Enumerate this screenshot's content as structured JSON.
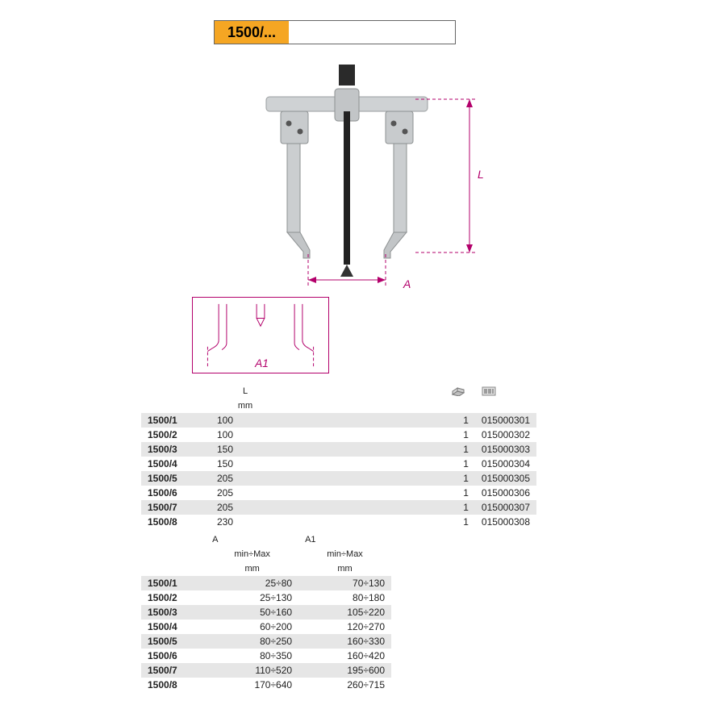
{
  "title": "1500/...",
  "colors": {
    "accent_orange": "#f5a623",
    "dim_magenta": "#b3006b",
    "row_shade": "#e6e6e6",
    "border_gray": "#666666",
    "text": "#222222",
    "background": "#ffffff"
  },
  "dimension_labels": {
    "L": "L",
    "A": "A",
    "A1": "A1"
  },
  "table1": {
    "headers": {
      "L": "L",
      "unit": "mm"
    },
    "columns": [
      "model",
      "L_mm",
      "qty",
      "code"
    ],
    "rows": [
      {
        "model": "1500/1",
        "L_mm": "100",
        "qty": "1",
        "code": "015000301"
      },
      {
        "model": "1500/2",
        "L_mm": "100",
        "qty": "1",
        "code": "015000302"
      },
      {
        "model": "1500/3",
        "L_mm": "150",
        "qty": "1",
        "code": "015000303"
      },
      {
        "model": "1500/4",
        "L_mm": "150",
        "qty": "1",
        "code": "015000304"
      },
      {
        "model": "1500/5",
        "L_mm": "205",
        "qty": "1",
        "code": "015000305"
      },
      {
        "model": "1500/6",
        "L_mm": "205",
        "qty": "1",
        "code": "015000306"
      },
      {
        "model": "1500/7",
        "L_mm": "205",
        "qty": "1",
        "code": "015000307"
      },
      {
        "model": "1500/8",
        "L_mm": "230",
        "qty": "1",
        "code": "015000308"
      }
    ]
  },
  "table2": {
    "headers": {
      "A": "A",
      "A1": "A1",
      "minmax": "min÷Max",
      "unit": "mm"
    },
    "columns": [
      "model",
      "A",
      "A1"
    ],
    "rows": [
      {
        "model": "1500/1",
        "A": "25÷80",
        "A1": "70÷130"
      },
      {
        "model": "1500/2",
        "A": "25÷130",
        "A1": "80÷180"
      },
      {
        "model": "1500/3",
        "A": "50÷160",
        "A1": "105÷220"
      },
      {
        "model": "1500/4",
        "A": "60÷200",
        "A1": "120÷270"
      },
      {
        "model": "1500/5",
        "A": "80÷250",
        "A1": "160÷330"
      },
      {
        "model": "1500/6",
        "A": "80÷350",
        "A1": "160÷420"
      },
      {
        "model": "1500/7",
        "A": "110÷520",
        "A1": "195÷600"
      },
      {
        "model": "1500/8",
        "A": "170÷640",
        "A1": "260÷715"
      }
    ]
  }
}
